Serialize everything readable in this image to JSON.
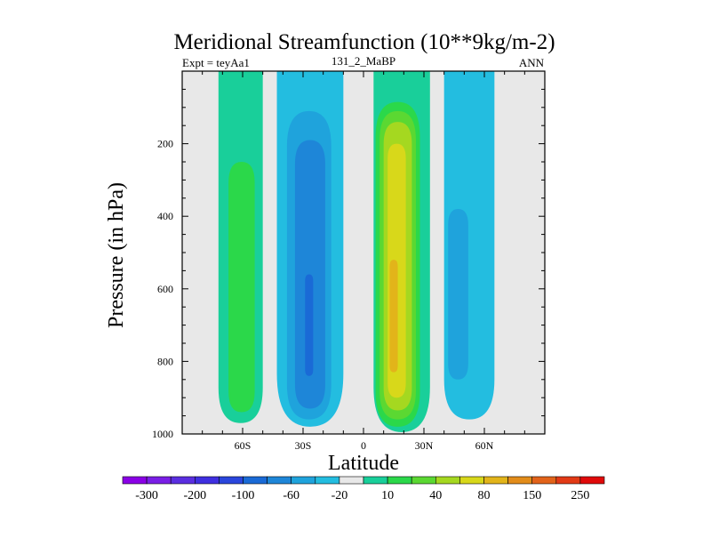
{
  "chart_data": {
    "type": "contour",
    "title": "Meridional Streamfunction (10**9kg/m-2)",
    "subtitle_left": "Expt = teyAa1",
    "subtitle_center": "131_2_MaBP",
    "subtitle_right": "ANN",
    "xlabel": "Latitude",
    "ylabel": "Pressure (in hPa)",
    "xlim": [
      -90,
      90
    ],
    "ylim": [
      1000,
      0
    ],
    "x_ticks": [
      {
        "value": -60,
        "label": "60S"
      },
      {
        "value": -30,
        "label": "30S"
      },
      {
        "value": 0,
        "label": "0"
      },
      {
        "value": 30,
        "label": "30N"
      },
      {
        "value": 60,
        "label": "60N"
      }
    ],
    "y_ticks": [
      {
        "value": 200,
        "label": "200"
      },
      {
        "value": 400,
        "label": "400"
      },
      {
        "value": 600,
        "label": "600"
      },
      {
        "value": 800,
        "label": "800"
      },
      {
        "value": 1000,
        "label": "1000"
      }
    ],
    "colorbar": {
      "colors": [
        "#8a00e6",
        "#7a1ee6",
        "#5a2ee0",
        "#3f2fe0",
        "#2a46dc",
        "#1a6ad6",
        "#1e86d8",
        "#1fa3dc",
        "#23bde0",
        "#e8e8e8",
        "#19cf9a",
        "#2bd84a",
        "#5bd832",
        "#a5d820",
        "#d8d81a",
        "#e2b41a",
        "#e28c1a",
        "#e2631a",
        "#e23a16",
        "#e00a0a"
      ],
      "labels": [
        {
          "after_index": 0,
          "label": "-300"
        },
        {
          "after_index": 2,
          "label": "-200"
        },
        {
          "after_index": 4,
          "label": "-100"
        },
        {
          "after_index": 6,
          "label": "-60"
        },
        {
          "after_index": 8,
          "label": "-20"
        },
        {
          "after_index": 10,
          "label": "10"
        },
        {
          "after_index": 12,
          "label": "40"
        },
        {
          "after_index": 14,
          "label": "80"
        },
        {
          "after_index": 16,
          "label": "150"
        },
        {
          "after_index": 18,
          "label": "250"
        }
      ]
    },
    "cells": [
      {
        "name": "southern-positive-cell",
        "color": "#19cf9a",
        "lat": [
          -72,
          -50
        ],
        "p": [
          0,
          970
        ],
        "level": 10
      },
      {
        "name": "southern-positive-core",
        "color": "#2bd84a",
        "lat": [
          -67,
          -54
        ],
        "p": [
          250,
          940
        ],
        "level": 20
      },
      {
        "name": "southern-negative-cell-outer",
        "color": "#23bde0",
        "lat": [
          -43,
          -10
        ],
        "p": [
          0,
          980
        ],
        "level": -10
      },
      {
        "name": "southern-negative-cell-mid",
        "color": "#1fa3dc",
        "lat": [
          -38,
          -16
        ],
        "p": [
          110,
          960
        ],
        "level": -20
      },
      {
        "name": "southern-negative-cell-inner",
        "color": "#1e86d8",
        "lat": [
          -34,
          -19
        ],
        "p": [
          190,
          930
        ],
        "level": -40
      },
      {
        "name": "southern-negative-core",
        "color": "#1a6ad6",
        "lat": [
          -29,
          -25
        ],
        "p": [
          560,
          840
        ],
        "level": -60
      },
      {
        "name": "northern-positive-outer",
        "color": "#19cf9a",
        "lat": [
          5,
          33
        ],
        "p": [
          0,
          995
        ],
        "level": 10
      },
      {
        "name": "northern-positive-l2",
        "color": "#2bd84a",
        "lat": [
          6,
          28
        ],
        "p": [
          85,
          980
        ],
        "level": 20
      },
      {
        "name": "northern-positive-l3",
        "color": "#5bd832",
        "lat": [
          8,
          26
        ],
        "p": [
          110,
          960
        ],
        "level": 40
      },
      {
        "name": "northern-positive-l4",
        "color": "#a5d820",
        "lat": [
          10,
          24
        ],
        "p": [
          140,
          935
        ],
        "level": 60
      },
      {
        "name": "northern-positive-l5",
        "color": "#d8d81a",
        "lat": [
          12,
          21
        ],
        "p": [
          200,
          900
        ],
        "level": 80
      },
      {
        "name": "northern-positive-core",
        "color": "#e2b41a",
        "lat": [
          13,
          17
        ],
        "p": [
          520,
          830
        ],
        "level": 100
      },
      {
        "name": "northern-negative-outer",
        "color": "#23bde0",
        "lat": [
          40,
          65
        ],
        "p": [
          0,
          960
        ],
        "level": -10
      },
      {
        "name": "northern-negative-core",
        "color": "#1fa3dc",
        "lat": [
          42,
          52
        ],
        "p": [
          380,
          850
        ],
        "level": -20
      }
    ]
  }
}
